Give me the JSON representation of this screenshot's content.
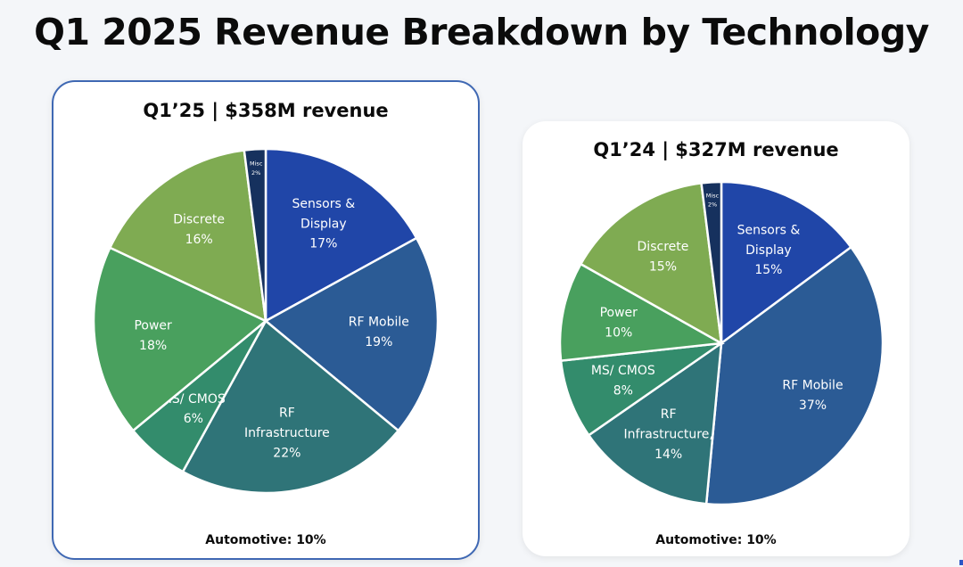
{
  "title": "Q1 2025 Revenue Breakdown by Technology",
  "chart_data": [
    {
      "type": "pie",
      "title": "Q1’25 | $358M revenue",
      "footer_label": "Automotive:",
      "footer_value": "10%",
      "slices": [
        {
          "label": [
            "Sensors &",
            "Display"
          ],
          "pct_label": "17%",
          "value": 17,
          "color": "#2046a8"
        },
        {
          "label": [
            "RF Mobile"
          ],
          "pct_label": "19%",
          "value": 19,
          "color": "#2b5b95"
        },
        {
          "label": [
            "RF",
            "Infrastructure"
          ],
          "pct_label": "22%",
          "value": 22,
          "color": "#2f7478"
        },
        {
          "label": [
            "MS/ CMOS"
          ],
          "pct_label": "6%",
          "value": 6,
          "color": "#338c6c"
        },
        {
          "label": [
            "Power"
          ],
          "pct_label": "18%",
          "value": 18,
          "color": "#49a05e"
        },
        {
          "label": [
            "Discrete"
          ],
          "pct_label": "16%",
          "value": 16,
          "color": "#7fab52"
        },
        {
          "label": [
            "Misc"
          ],
          "pct_label": "2%",
          "value": 2,
          "color": "#16315e"
        }
      ]
    },
    {
      "type": "pie",
      "title": "Q1’24 | $327M revenue",
      "footer_label": "Automotive:",
      "footer_value": "10%",
      "slices": [
        {
          "label": [
            "Sensors &",
            "Display"
          ],
          "pct_label": "15%",
          "value": 15,
          "color": "#2046a8"
        },
        {
          "label": [
            "RF Mobile"
          ],
          "pct_label": "37%",
          "value": 37,
          "color": "#2b5b95"
        },
        {
          "label": [
            "RF",
            "Infrastructure,"
          ],
          "pct_label": "14%",
          "value": 14,
          "color": "#2f7478"
        },
        {
          "label": [
            "MS/ CMOS"
          ],
          "pct_label": "8%",
          "value": 8,
          "color": "#338c6c"
        },
        {
          "label": [
            "Power"
          ],
          "pct_label": "10%",
          "value": 10,
          "color": "#49a05e"
        },
        {
          "label": [
            "Discrete"
          ],
          "pct_label": "15%",
          "value": 15,
          "color": "#7fab52"
        },
        {
          "label": [
            "Misc"
          ],
          "pct_label": "2%",
          "value": 2,
          "color": "#16315e"
        }
      ]
    }
  ]
}
